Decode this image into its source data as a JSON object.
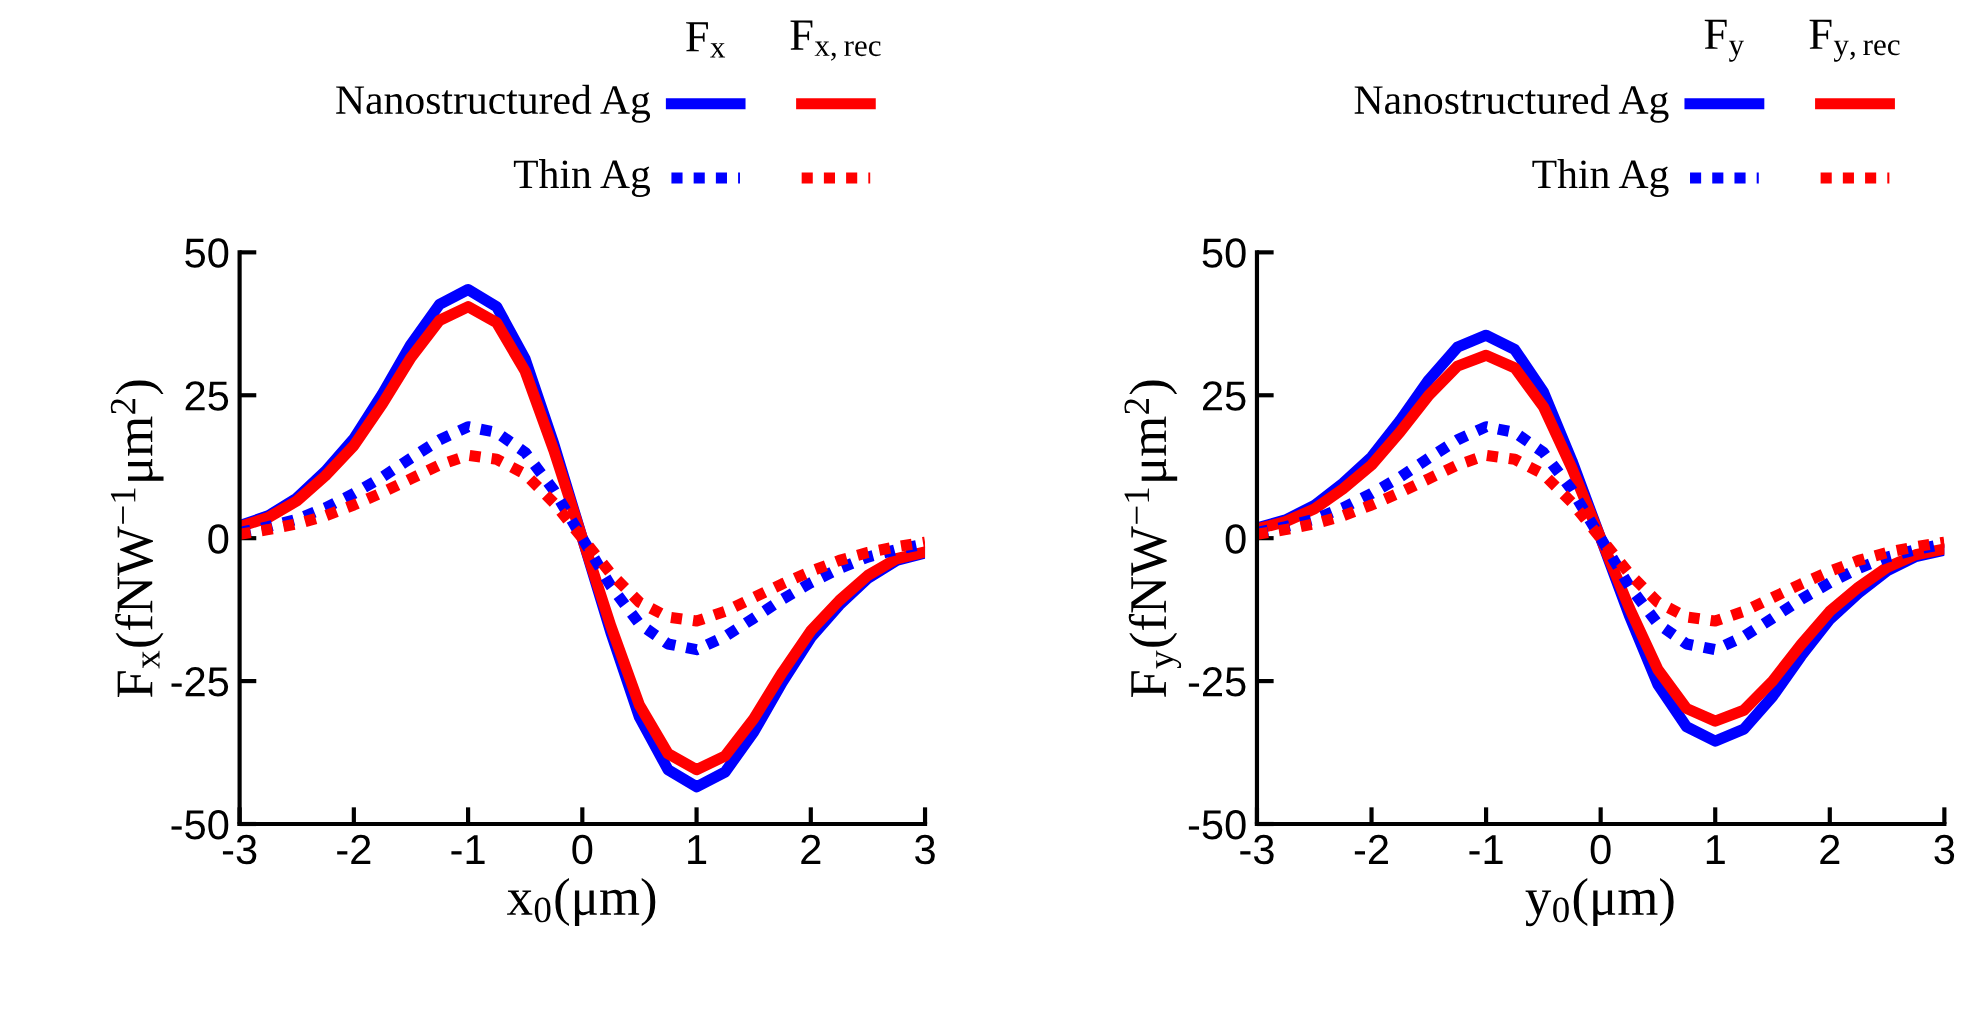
{
  "chart_data": [
    {
      "type": "line",
      "xlabel": "x$_{0}$(μm)",
      "ylabel": "F$_{x}$(fNW$^{−1}$μm$^{2}$)",
      "annotations": [
        "F$_{x}$",
        "F$_{x,rec}$"
      ],
      "legend": "top",
      "grid": false,
      "marker": "none",
      "x": [
        -3,
        -2.75,
        -2.5,
        -2.25,
        -2,
        -1.75,
        -1.5,
        -1.25,
        -1,
        -0.75,
        -0.5,
        -0.25,
        0,
        0.25,
        0.5,
        0.75,
        1,
        1.25,
        1.5,
        1.75,
        2,
        2.25,
        2.5,
        2.75,
        3
      ],
      "xlim": [
        -3,
        3
      ],
      "xticks": [
        -3,
        -2,
        -1,
        0,
        1,
        2,
        3
      ],
      "ylim": [
        -50,
        50
      ],
      "yticks": [
        -50,
        -25,
        0,
        25,
        50
      ],
      "series": [
        {
          "name": "Nanostructured Ag",
          "color": "#0000ff",
          "line_style": "solid",
          "values": [
            2.2,
            3.9,
            7,
            11.7,
            17.4,
            25.2,
            33.9,
            40.9,
            43.5,
            40.5,
            31.3,
            16.5,
            0,
            -16.5,
            -31.3,
            -40.5,
            -43.5,
            -40.9,
            -33.9,
            -25.2,
            -17.4,
            -11.7,
            -7,
            -3.9,
            -2.6
          ]
        },
        {
          "color": "#ff0000",
          "line_style": "solid",
          "values": [
            2,
            3.6,
            6.5,
            10.9,
            16.2,
            23.5,
            31.6,
            38.1,
            40.5,
            37.7,
            29.2,
            15.4,
            0,
            -15.4,
            -29.2,
            -37.7,
            -40.5,
            -38.1,
            -31.6,
            -23.5,
            -16.2,
            -10.9,
            -6.5,
            -3.6,
            -2.4
          ]
        },
        {
          "name": "Thin Ag",
          "color": "#0000ff",
          "line_style": "dotted",
          "values": [
            1,
            2,
            3.3,
            5.3,
            7.8,
            10.7,
            14,
            17.2,
            19.5,
            18.5,
            15,
            8.4,
            0,
            -8.4,
            -15,
            -18.5,
            -19.5,
            -17.2,
            -14,
            -10.7,
            -7.8,
            -5.3,
            -3.3,
            -2,
            -1
          ]
        },
        {
          "color": "#ff0000",
          "line_style": "dotted",
          "values": [
            0.7,
            1.5,
            2.5,
            3.9,
            5.8,
            8,
            10.4,
            12.8,
            14.5,
            13.8,
            11.2,
            6.2,
            0,
            -6.2,
            -11.2,
            -13.8,
            -14.5,
            -12.8,
            -10.4,
            -8,
            -5.8,
            -3.9,
            -2.5,
            -1.5,
            -0.7
          ]
        }
      ]
    },
    {
      "type": "line",
      "xlabel": "y$_{0}$(μm)",
      "ylabel": "F$_{y}$(fNW$^{−1}$μm$^{2}$)",
      "annotations": [
        "F$_{y}$",
        "F$_{y,rec}$"
      ],
      "legend": "top",
      "grid": false,
      "marker": "none",
      "x": [
        -3,
        -2.75,
        -2.5,
        -2.25,
        -2,
        -1.75,
        -1.5,
        -1.25,
        -1,
        -0.75,
        -0.5,
        -0.25,
        0,
        0.25,
        0.5,
        0.75,
        1,
        1.25,
        1.5,
        1.75,
        2,
        2.25,
        2.5,
        2.75,
        3
      ],
      "xlim": [
        -3,
        3
      ],
      "xticks": [
        -3,
        -2,
        -1,
        0,
        1,
        2,
        3
      ],
      "ylim": [
        -50,
        50
      ],
      "yticks": [
        -50,
        -25,
        0,
        25,
        50
      ],
      "series": [
        {
          "name": "Nanostructured Ag",
          "color": "#0000ff",
          "line_style": "solid",
          "values": [
            1.8,
            3.2,
            5.7,
            9.6,
            14.2,
            20.6,
            27.7,
            33.4,
            35.5,
            33,
            25.6,
            13.5,
            0,
            -13.5,
            -25.6,
            -33,
            -35.5,
            -33.4,
            -27.7,
            -20.6,
            -14.2,
            -9.6,
            -5.7,
            -3.2,
            -2.1
          ]
        },
        {
          "color": "#ff0000",
          "line_style": "solid",
          "values": [
            1.6,
            2.9,
            5.1,
            8.6,
            12.8,
            18.6,
            25,
            30.1,
            32,
            29.8,
            23,
            12.2,
            0,
            -12.2,
            -23,
            -29.8,
            -32,
            -30.1,
            -25,
            -18.6,
            -12.8,
            -8.6,
            -5.1,
            -2.9,
            -1.9
          ]
        },
        {
          "name": "Thin Ag",
          "color": "#0000ff",
          "line_style": "dotted",
          "values": [
            1,
            2,
            3.3,
            5.3,
            7.8,
            10.7,
            14,
            17.2,
            19.5,
            18.5,
            15,
            8.4,
            0,
            -8.4,
            -15,
            -18.5,
            -19.5,
            -17.2,
            -14,
            -10.7,
            -7.8,
            -5.3,
            -3.3,
            -2,
            -1
          ]
        },
        {
          "color": "#ff0000",
          "line_style": "dotted",
          "values": [
            0.7,
            1.5,
            2.5,
            3.9,
            5.8,
            8,
            10.4,
            12.8,
            14.5,
            13.8,
            11.2,
            6.2,
            0,
            -6.2,
            -11.2,
            -13.8,
            -14.5,
            -12.8,
            -10.4,
            -8,
            -5.8,
            -3.9,
            -2.5,
            -1.5,
            -0.7
          ]
        }
      ]
    }
  ]
}
